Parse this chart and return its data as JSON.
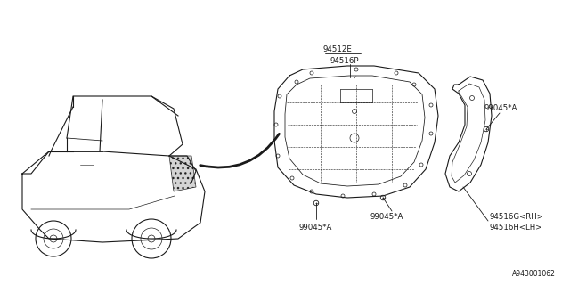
{
  "bg_color": "#ffffff",
  "line_color": "#1a1a1a",
  "text_color": "#1a1a1a",
  "diagram_id": "A943001062",
  "label_94512E": "94512E",
  "label_94516P": "94516P",
  "label_99045A": "99045*A",
  "label_94516G": "94516G<RH>",
  "label_94516H": "94516H<LH>",
  "font_size_label": 6.2,
  "font_size_id": 5.5
}
